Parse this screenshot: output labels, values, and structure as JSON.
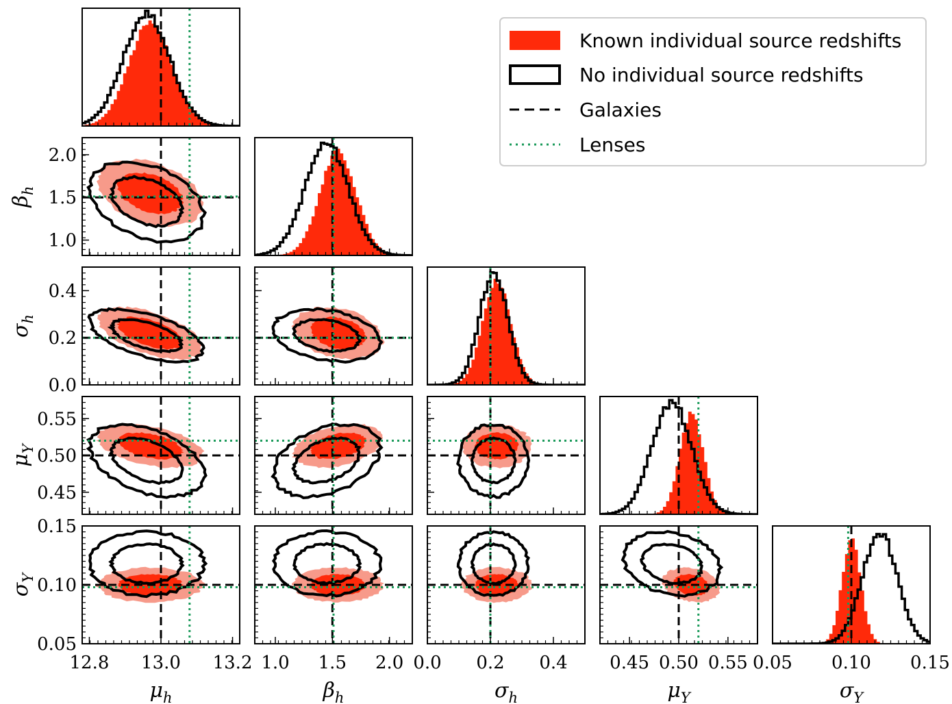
{
  "chart_data": {
    "type": "corner",
    "title": "",
    "parameters": [
      {
        "symbol": "μ",
        "subscript": "h",
        "range": [
          12.78,
          13.22
        ],
        "ticks": [
          12.8,
          13.0,
          13.2
        ],
        "tick_labels": [
          "12.8",
          "13.0",
          "13.2"
        ],
        "galaxies": 13.0,
        "lenses": 13.08,
        "known_mean": 12.97,
        "known_sd": 0.06,
        "none_mean": 12.96,
        "none_sd": 0.065
      },
      {
        "symbol": "β",
        "subscript": "h",
        "range": [
          0.82,
          2.2
        ],
        "ticks": [
          1.0,
          1.5,
          2.0
        ],
        "tick_labels": [
          "1.0",
          "1.5",
          "2.0"
        ],
        "galaxies": 1.5,
        "lenses": 1.51,
        "known_mean": 1.55,
        "known_sd": 0.16,
        "none_mean": 1.45,
        "none_sd": 0.19
      },
      {
        "symbol": "σ",
        "subscript": "h",
        "range": [
          0.0,
          0.5
        ],
        "ticks": [
          0.0,
          0.2,
          0.4
        ],
        "tick_labels": [
          "0.0",
          "0.2",
          "0.4"
        ],
        "galaxies": 0.2,
        "lenses": 0.2,
        "known_mean": 0.22,
        "known_sd": 0.045,
        "none_mean": 0.21,
        "none_sd": 0.045
      },
      {
        "symbol": "μ",
        "subscript": "Υ",
        "range": [
          0.42,
          0.58
        ],
        "ticks": [
          0.45,
          0.5,
          0.55
        ],
        "tick_labels": [
          "0.45",
          "0.50",
          "0.55"
        ],
        "galaxies": 0.5,
        "lenses": 0.52,
        "known_mean": 0.513,
        "known_sd": 0.012,
        "none_mean": 0.493,
        "none_sd": 0.02
      },
      {
        "symbol": "σ",
        "subscript": "Υ",
        "range": [
          0.05,
          0.15
        ],
        "ticks": [
          0.05,
          0.1,
          0.15
        ],
        "tick_labels": [
          "0.05",
          "0.10",
          "0.15"
        ],
        "galaxies": 0.1,
        "lenses": 0.098,
        "known_mean": 0.1,
        "known_sd": 0.006,
        "none_mean": 0.118,
        "none_sd": 0.011
      }
    ],
    "series": [
      {
        "name": "Known individual source redshifts",
        "style": "filled",
        "color": "#ff2a0a",
        "color_light": "#f79a8a"
      },
      {
        "name": "No individual source redshifts",
        "style": "outline",
        "color": "#000000"
      }
    ],
    "reference_lines": [
      {
        "name": "Galaxies",
        "style": "dashed",
        "color": "#000000"
      },
      {
        "name": "Lenses",
        "style": "dotted",
        "color": "#1a9a5a"
      }
    ],
    "legend_position": "top-right",
    "grid": false
  }
}
